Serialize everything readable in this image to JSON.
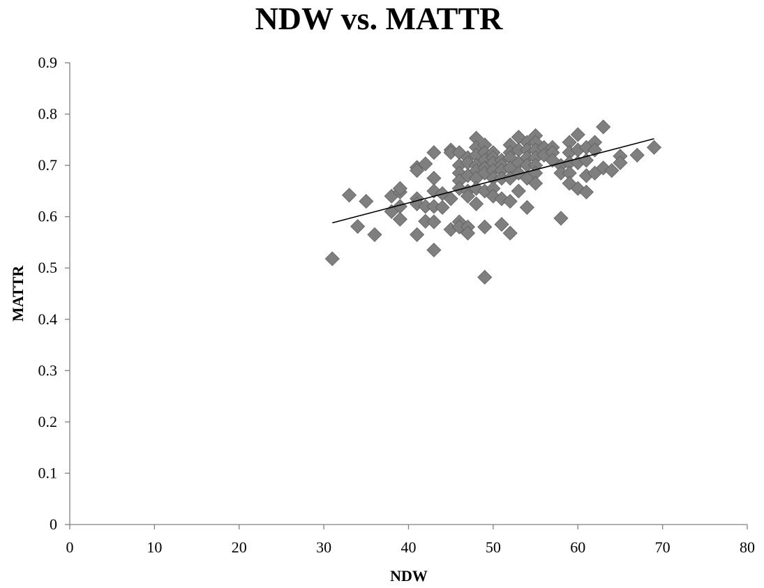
{
  "chart_data": {
    "type": "scatter",
    "title": "NDW vs. MATTR",
    "xlabel": "NDW",
    "ylabel": "MATTR",
    "xlim": [
      0,
      80
    ],
    "ylim": [
      0,
      0.9
    ],
    "x_ticks": [
      "0",
      "10",
      "20",
      "30",
      "40",
      "50",
      "60",
      "70",
      "80"
    ],
    "y_ticks": [
      "0",
      "0.1",
      "0.2",
      "0.3",
      "0.4",
      "0.5",
      "0.6",
      "0.7",
      "0.8",
      "0.9"
    ],
    "marker": "diamond",
    "marker_color": "#7f7f7f",
    "trendline": {
      "type": "linear",
      "x": [
        31,
        69
      ],
      "y": [
        0.588,
        0.752
      ],
      "color": "#000000"
    },
    "series": [
      {
        "x": [
          31,
          33,
          34,
          35,
          36,
          38,
          38,
          39,
          39,
          39,
          39,
          41,
          41,
          41,
          41,
          41,
          42,
          42,
          42,
          43,
          43,
          43,
          43,
          43,
          43,
          44,
          44,
          45,
          45,
          45,
          45,
          46,
          46,
          46,
          46,
          46,
          46,
          46,
          47,
          47,
          47,
          47,
          47,
          47,
          47,
          48,
          48,
          48,
          48,
          48,
          48,
          48,
          48,
          49,
          49,
          49,
          49,
          49,
          49,
          49,
          49,
          50,
          50,
          50,
          50,
          50,
          50,
          50,
          51,
          51,
          51,
          51,
          51,
          51,
          52,
          52,
          52,
          52,
          52,
          52,
          52,
          53,
          53,
          53,
          53,
          53,
          54,
          54,
          54,
          54,
          54,
          54,
          55,
          55,
          55,
          55,
          55,
          55,
          55,
          56,
          56,
          57,
          57,
          57,
          58,
          58,
          58,
          59,
          59,
          59,
          59,
          59,
          60,
          60,
          60,
          60,
          61,
          61,
          61,
          61,
          62,
          62,
          62,
          63,
          63,
          64,
          65,
          65,
          67,
          69
        ],
        "y": [
          0.518,
          0.642,
          0.581,
          0.63,
          0.565,
          0.64,
          0.61,
          0.648,
          0.655,
          0.62,
          0.595,
          0.696,
          0.69,
          0.635,
          0.625,
          0.565,
          0.703,
          0.62,
          0.591,
          0.725,
          0.675,
          0.65,
          0.62,
          0.59,
          0.535,
          0.645,
          0.618,
          0.73,
          0.725,
          0.635,
          0.575,
          0.725,
          0.7,
          0.685,
          0.67,
          0.655,
          0.59,
          0.58,
          0.715,
          0.705,
          0.68,
          0.65,
          0.64,
          0.58,
          0.568,
          0.753,
          0.735,
          0.72,
          0.7,
          0.69,
          0.675,
          0.655,
          0.625,
          0.74,
          0.725,
          0.71,
          0.695,
          0.685,
          0.65,
          0.58,
          0.482,
          0.725,
          0.715,
          0.705,
          0.69,
          0.675,
          0.655,
          0.64,
          0.71,
          0.7,
          0.69,
          0.675,
          0.635,
          0.585,
          0.74,
          0.725,
          0.715,
          0.695,
          0.675,
          0.63,
          0.568,
          0.755,
          0.73,
          0.705,
          0.685,
          0.65,
          0.745,
          0.73,
          0.715,
          0.7,
          0.675,
          0.618,
          0.758,
          0.745,
          0.73,
          0.715,
          0.7,
          0.685,
          0.665,
          0.735,
          0.72,
          0.735,
          0.725,
          0.71,
          0.7,
          0.685,
          0.597,
          0.745,
          0.725,
          0.705,
          0.685,
          0.665,
          0.76,
          0.73,
          0.705,
          0.655,
          0.735,
          0.71,
          0.68,
          0.648,
          0.745,
          0.73,
          0.685,
          0.775,
          0.695,
          0.69,
          0.718,
          0.705,
          0.72,
          0.735
        ]
      }
    ]
  }
}
